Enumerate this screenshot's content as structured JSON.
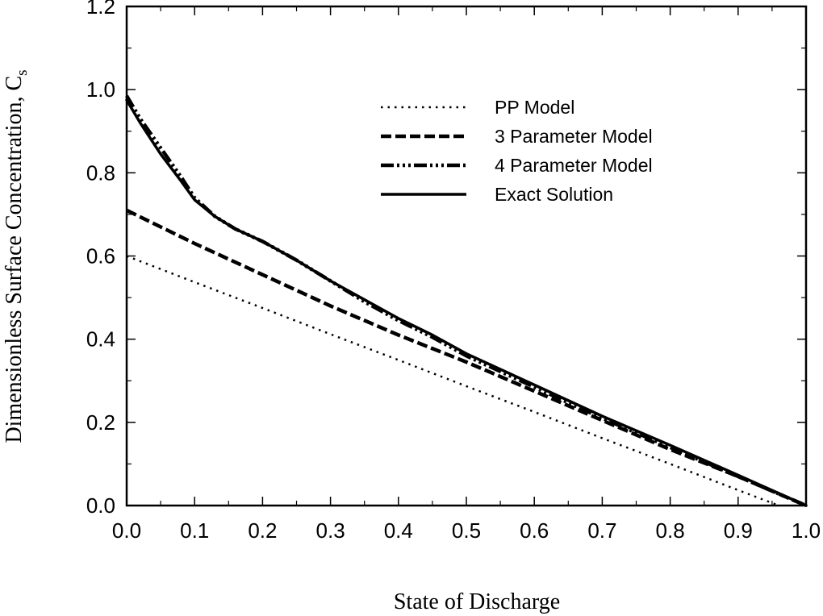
{
  "chart_data": {
    "type": "line",
    "xlabel": "State of Discharge",
    "ylabel": "Dimensionless Surface Concentration, C",
    "ylabel_subscript": "s",
    "xlim": [
      0.0,
      1.0
    ],
    "ylim": [
      0.0,
      1.2
    ],
    "xticks": [
      "0.0",
      "0.1",
      "0.2",
      "0.3",
      "0.4",
      "0.5",
      "0.6",
      "0.7",
      "0.8",
      "0.9",
      "1.0"
    ],
    "yticks": [
      "0.0",
      "0.2",
      "0.4",
      "0.6",
      "0.8",
      "1.0",
      "1.2"
    ],
    "grid": false,
    "legend_position": "upper-right",
    "series": [
      {
        "name": "PP Model",
        "style": "dotted",
        "x": [
          0.0,
          0.1,
          0.2,
          0.3,
          0.4,
          0.5,
          0.6,
          0.7,
          0.8,
          0.9,
          0.96
        ],
        "y": [
          0.6,
          0.537,
          0.475,
          0.412,
          0.35,
          0.287,
          0.225,
          0.162,
          0.1,
          0.037,
          0.0
        ]
      },
      {
        "name": "3 Parameter Model",
        "style": "dashed",
        "x": [
          0.0,
          0.1,
          0.2,
          0.3,
          0.4,
          0.5,
          0.6,
          0.7,
          0.8,
          0.9,
          1.0
        ],
        "y": [
          0.71,
          0.63,
          0.555,
          0.48,
          0.41,
          0.345,
          0.275,
          0.205,
          0.135,
          0.07,
          0.0
        ]
      },
      {
        "name": "4 Parameter Model",
        "style": "dash-dot",
        "x": [
          0.0,
          0.02,
          0.05,
          0.08,
          0.1,
          0.13,
          0.16,
          0.2,
          0.25,
          0.3,
          0.35,
          0.4,
          0.45,
          0.5,
          0.6,
          0.7,
          0.8,
          0.9,
          1.0
        ],
        "y": [
          0.985,
          0.93,
          0.86,
          0.79,
          0.74,
          0.695,
          0.665,
          0.635,
          0.59,
          0.54,
          0.49,
          0.445,
          0.405,
          0.36,
          0.285,
          0.21,
          0.14,
          0.07,
          0.0
        ]
      },
      {
        "name": "Exact Solution",
        "style": "solid",
        "x": [
          0.0,
          0.02,
          0.05,
          0.08,
          0.1,
          0.13,
          0.16,
          0.2,
          0.25,
          0.3,
          0.35,
          0.4,
          0.45,
          0.5,
          0.6,
          0.7,
          0.8,
          0.9,
          1.0
        ],
        "y": [
          0.975,
          0.92,
          0.845,
          0.78,
          0.735,
          0.695,
          0.665,
          0.635,
          0.59,
          0.54,
          0.495,
          0.45,
          0.41,
          0.365,
          0.29,
          0.215,
          0.145,
          0.073,
          0.0
        ]
      }
    ]
  }
}
